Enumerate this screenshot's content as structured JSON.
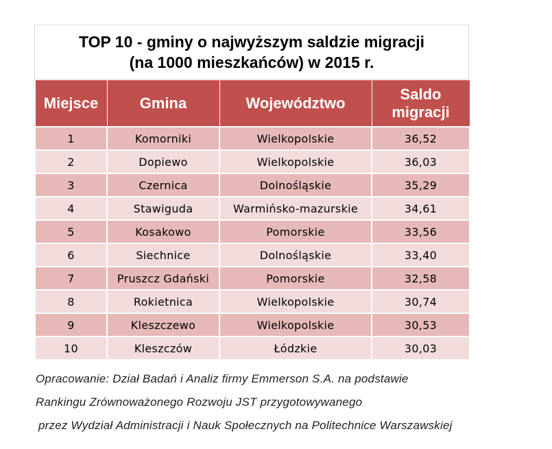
{
  "title": {
    "line1": "TOP 10 - gminy o najwyższym saldzie migracji",
    "line2": "(na 1000 mieszkańców) w 2015 r."
  },
  "headers": {
    "miejsce": "Miejsce",
    "gmina": "Gmina",
    "wojewodztwo": "Województwo",
    "saldo_line1": "Saldo",
    "saldo_line2": "migracji"
  },
  "chart_data": {
    "type": "table",
    "title": "TOP 10 - gminy o najwyższym saldzie migracji (na 1000 mieszkańców) w 2015 r.",
    "columns": [
      "Miejsce",
      "Gmina",
      "Województwo",
      "Saldo migracji"
    ],
    "rows": [
      [
        "1",
        "Komorniki",
        "Wielkopolskie",
        "36,52"
      ],
      [
        "2",
        "Dopiewo",
        "Wielkopolskie",
        "36,03"
      ],
      [
        "3",
        "Czernica",
        "Dolnośląskie",
        "35,29"
      ],
      [
        "4",
        "Stawiguda",
        "Warmińsko-mazurskie",
        "34,61"
      ],
      [
        "5",
        "Kosakowo",
        "Pomorskie",
        "33,56"
      ],
      [
        "6",
        "Siechnice",
        "Dolnośląskie",
        "33,40"
      ],
      [
        "7",
        "Pruszcz Gdański",
        "Pomorskie",
        "32,58"
      ],
      [
        "8",
        "Rokietnica",
        "Wielkopolskie",
        "30,74"
      ],
      [
        "9",
        "Kleszczewo",
        "Wielkopolskie",
        "30,53"
      ],
      [
        "10",
        "Kleszczów",
        "Łódzkie",
        "30,03"
      ]
    ]
  },
  "caption": {
    "line1": "Opracowanie: Dział Badań i Analiz firmy Emmerson S.A. na podstawie",
    "line2": "Rankingu Zrównoważonego Rozwoju JST przygotowywanego",
    "line3": "przez Wydział Administracji i Nauk Społecznych na Politechnice Warszawskiej"
  },
  "colors": {
    "header_bg": "#c0504d",
    "row_dark": "#e6b9b8",
    "row_light": "#f2dcdb"
  }
}
